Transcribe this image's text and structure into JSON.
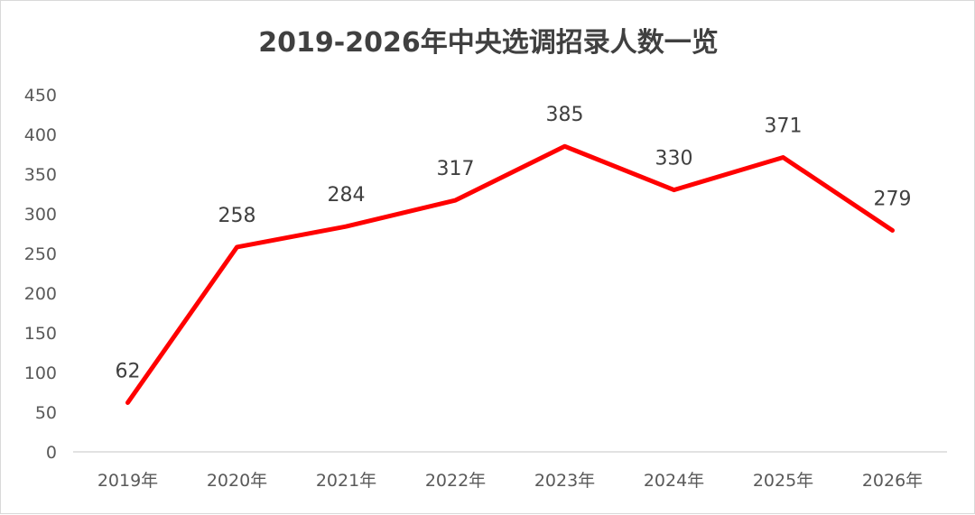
{
  "chart_data": {
    "type": "line",
    "title": "2019-2026年中央选调招录人数一览",
    "categories": [
      "2019年",
      "2020年",
      "2021年",
      "2022年",
      "2023年",
      "2024年",
      "2025年",
      "2026年"
    ],
    "values": [
      62,
      258,
      284,
      317,
      385,
      330,
      371,
      279
    ],
    "data_labels": [
      "62",
      "258",
      "284",
      "317",
      "385",
      "330",
      "371",
      "279"
    ],
    "yticks": [
      "0",
      "50",
      "100",
      "150",
      "200",
      "250",
      "300",
      "350",
      "400",
      "450"
    ],
    "ylim": [
      0,
      450
    ],
    "ytick_step": 50,
    "grid": false,
    "legend": "none",
    "line_color": "#ff0000",
    "axis_color": "#d9d9d9"
  }
}
